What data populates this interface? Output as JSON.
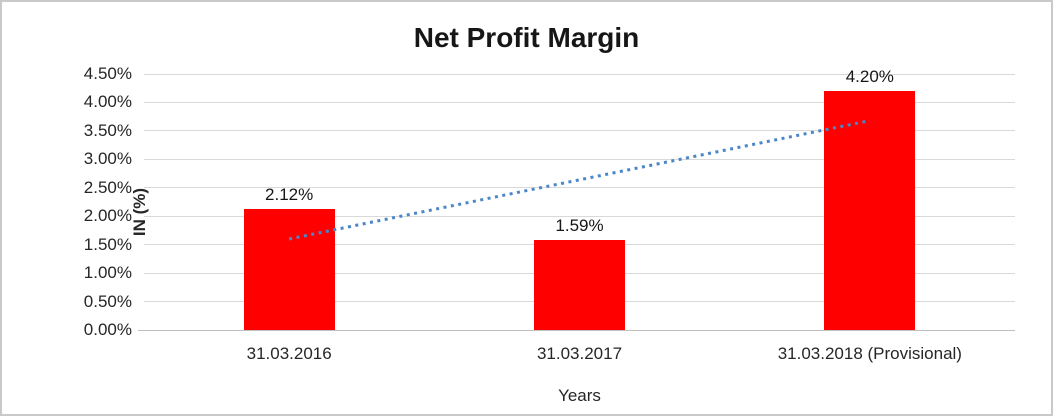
{
  "chart_data": {
    "type": "bar",
    "title": "Net Profit Margin",
    "xlabel": "Years",
    "ylabel": "IN (%)",
    "categories": [
      "31.03.2016",
      "31.03.2017",
      "31.03.2018 (Provisional)"
    ],
    "values": [
      2.12,
      1.59,
      4.2
    ],
    "data_labels": [
      "2.12%",
      "1.59%",
      "4.20%"
    ],
    "ylim": [
      0,
      4.5
    ],
    "ytick_step": 0.5,
    "ytick_labels": [
      "0.00%",
      "0.50%",
      "1.00%",
      "1.50%",
      "2.00%",
      "2.50%",
      "3.00%",
      "3.50%",
      "4.00%",
      "4.50%"
    ],
    "grid": true,
    "legend": "none",
    "bar_color": "#ff0000",
    "gridline_color": "#d9d9d9",
    "axis_line_color": "#bfbfbf",
    "trendline": {
      "type": "linear",
      "style": "dotted",
      "color": "#4a86c8",
      "start_value": 1.6,
      "end_value": 3.68
    }
  }
}
